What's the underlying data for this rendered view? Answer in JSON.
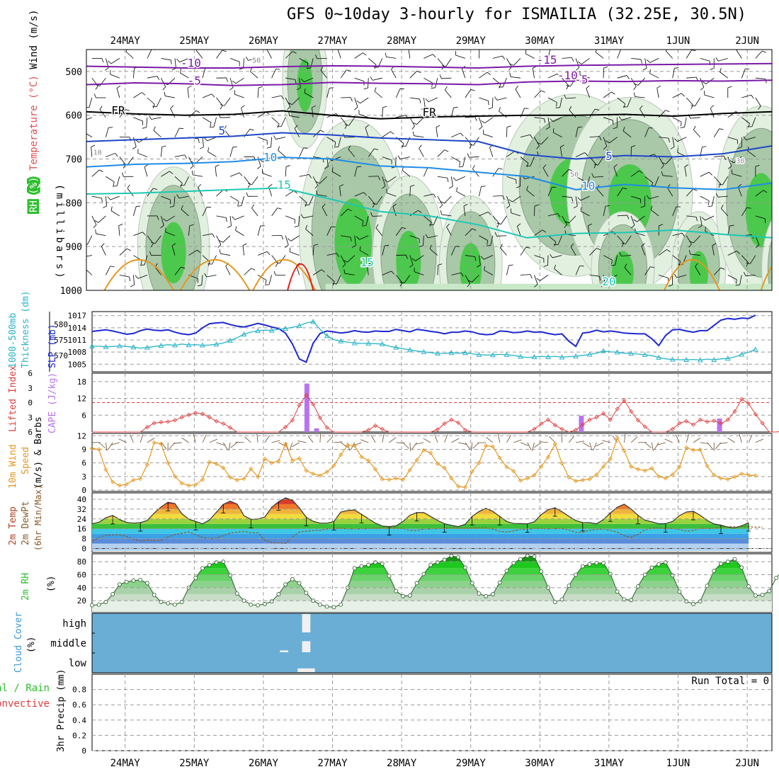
{
  "title": "GFS 0~10day 3-hourly for ISMAILIA (32.25E, 30.5N)",
  "colors": {
    "grid": "#9a9a9a",
    "temp_purple": "#7a1aa8",
    "temp_blue": "#1e46c8",
    "temp_lightblue": "#1e8ce6",
    "temp_teal": "#1ec8b4",
    "temp_orange": "#e6961e",
    "temp_red": "#e61e1e",
    "rh_green": "#2bbf2b",
    "slp_blue": "#1e28d2",
    "thickness_cyan": "#28b4c8",
    "lifted_red": "#e03c3c",
    "cape_purple": "#b873f0",
    "wind_orange": "#e6961e",
    "cloud_bg": "#6aaed6"
  },
  "chart_data": [
    {
      "type": "contour",
      "name": "upper-air",
      "y_label_lines": [
        "RH (%)",
        "Temperature (°C)",
        "Wind (m/s)"
      ],
      "y_axis_title": "(millibars)",
      "x_ticks": [
        "24MAY",
        "25MAY",
        "26MAY",
        "27MAY",
        "28MAY",
        "29MAY",
        "30MAY",
        "31MAY",
        "1JUN",
        "2JUN"
      ],
      "y_ticks": [
        500,
        600,
        700,
        800,
        900,
        1000
      ],
      "ylim": [
        1000,
        450
      ],
      "contour_labels": [
        "-10",
        "-5",
        "FR",
        "5",
        "10",
        "15",
        "-15",
        "-10",
        "-5",
        "FR",
        "5",
        "10",
        "15",
        "20",
        "50",
        "50",
        "30",
        "10"
      ],
      "isotherms": [
        {
          "label": "-10",
          "color_key": "temp_purple",
          "p": [
            488,
            490,
            492,
            492,
            489,
            487,
            488,
            490,
            492,
            488,
            486,
            485,
            484,
            483,
            482
          ]
        },
        {
          "label": "-5",
          "color_key": "temp_purple",
          "p": [
            530,
            526,
            528,
            532,
            530,
            525,
            527,
            528,
            530,
            524,
            522,
            523,
            521,
            522,
            520
          ]
        },
        {
          "label": "FR",
          "color_key": "temp_black",
          "p": [
            592,
            597,
            600,
            598,
            590,
            600,
            608,
            604,
            602,
            600,
            600,
            598,
            602,
            596,
            592
          ]
        },
        {
          "label": "5",
          "color_key": "temp_blue",
          "p": [
            660,
            656,
            652,
            648,
            640,
            645,
            652,
            656,
            660,
            690,
            700,
            692,
            695,
            688,
            670
          ]
        },
        {
          "label": "10",
          "color_key": "temp_lightblue",
          "p": [
            718,
            712,
            710,
            706,
            696,
            700,
            716,
            720,
            730,
            740,
            770,
            758,
            766,
            770,
            755
          ]
        },
        {
          "label": "15",
          "color_key": "temp_teal",
          "p": [
            780,
            778,
            774,
            770,
            766,
            792,
            820,
            830,
            850,
            880,
            870,
            868,
            862,
            872,
            880
          ]
        }
      ],
      "rh_blobs": [
        {
          "d": 2.6,
          "p": 520,
          "w": 0.25,
          "h": 120
        },
        {
          "d": 3.3,
          "p": 870,
          "w": 0.6,
          "h": 200
        },
        {
          "d": 4.1,
          "p": 920,
          "w": 0.4,
          "h": 140
        },
        {
          "d": 5.0,
          "p": 940,
          "w": 0.35,
          "h": 120
        },
        {
          "d": 6.5,
          "p": 760,
          "w": 0.8,
          "h": 160
        },
        {
          "d": 7.3,
          "p": 780,
          "w": 0.7,
          "h": 170
        },
        {
          "d": 7.2,
          "p": 950,
          "w": 0.35,
          "h": 100
        },
        {
          "d": 8.3,
          "p": 950,
          "w": 0.3,
          "h": 100
        },
        {
          "d": 9.2,
          "p": 800,
          "w": 0.5,
          "h": 170
        },
        {
          "d": 9.6,
          "p": 950,
          "w": 0.3,
          "h": 110
        },
        {
          "d": 0.7,
          "p": 900,
          "w": 0.4,
          "h": 140
        }
      ]
    },
    {
      "type": "line",
      "name": "slp-thickness",
      "y_labels": [
        "1000-500mb",
        "Thickness (dm)",
        "SLP (mb)"
      ],
      "left_ticks": [
        570,
        575,
        580
      ],
      "right_ticks": [
        1005,
        1008,
        1011,
        1014,
        1017
      ],
      "slp": [
        1013.1,
        1013.3,
        1013.5,
        1013.2,
        1012.8,
        1012.4,
        1012.6,
        1013.3,
        1013.7,
        1013.4,
        1013.3,
        1013.5,
        1012.9,
        1012.5,
        1012.3,
        1012.7,
        1014.0,
        1015.0,
        1015.2,
        1015.3,
        1014.8,
        1014.4,
        1014.2,
        1014.6,
        1015.1,
        1014.7,
        1014.2,
        1013.8,
        1012.7,
        1010.0,
        1006.3,
        1005.5,
        1010.2,
        1012.6,
        1013.2,
        1013.0,
        1012.7,
        1012.9,
        1013.3,
        1013.0,
        1012.9,
        1013.2,
        1013.1,
        1013.1,
        1013.6,
        1013.3,
        1013.0,
        1013.6,
        1013.4,
        1013.1,
        1012.9,
        1012.5,
        1012.9,
        1012.9,
        1013.2,
        1013.0,
        1012.5,
        1012.3,
        1012.4,
        1013.2,
        1013.1,
        1012.8,
        1012.9,
        1013.2,
        1012.9,
        1013.0,
        1012.6,
        1012.3,
        1012.5,
        1010.7,
        1009.4,
        1012.7,
        1012.9,
        1013.4,
        1013.0,
        1013.2,
        1013.0,
        1012.7,
        1012.6,
        1012.5,
        1012.5,
        1011.3,
        1009.6,
        1012.1,
        1013.5,
        1013.6,
        1013.2,
        1012.9,
        1013.3,
        1013.3,
        1014.6,
        1015.9,
        1016.3,
        1016.1,
        1016.4,
        1016.3,
        1017.1
      ],
      "thickness": [
        573.0,
        573.0,
        572.8,
        572.9,
        573.1,
        572.9,
        572.7,
        572.4,
        572.6,
        572.9,
        573.2,
        573.5,
        573.3,
        573.7,
        573.4,
        573.5,
        573.3,
        573.4,
        573.6,
        574.0,
        574.8,
        575.7,
        576.8,
        577.5,
        577.9,
        578.1,
        578.0,
        578.4,
        578.6,
        579.0,
        579.5,
        580.4,
        580.8,
        578.4,
        576.3,
        575.1,
        574.6,
        574.3,
        574.0,
        573.9,
        573.9,
        573.8,
        573.7,
        573.0,
        572.6,
        572.2,
        571.8,
        571.5,
        571.2,
        571.0,
        570.7,
        570.7,
        570.9,
        570.8,
        570.9,
        570.6,
        570.3,
        570.2,
        570.2,
        570.4,
        570.3,
        570.1,
        569.7,
        569.4,
        569.6,
        569.8,
        569.6,
        569.8,
        569.5,
        569.7,
        569.8,
        570.1,
        570.4,
        570.8,
        571.5,
        571.2,
        571.1,
        570.8,
        570.7,
        570.5,
        570.3,
        570.0,
        569.4,
        569.0,
        568.8,
        568.7,
        568.7,
        568.8,
        568.6,
        568.9,
        568.7,
        569.0,
        569.1,
        569.6,
        570.4,
        571.1,
        572.0
      ]
    },
    {
      "type": "bar+line",
      "name": "lifted-cape",
      "y_labels": [
        "Lifted Index",
        "CAPE (J/kg)"
      ],
      "left_ticks": [
        -6,
        -3,
        0,
        3,
        6
      ],
      "right_ticks": [
        6,
        12,
        18
      ],
      "lifted_index": [
        6,
        6,
        6,
        6,
        6,
        6,
        6,
        6,
        5,
        4.2,
        4.0,
        3.9,
        3.6,
        3.0,
        2.5,
        2.1,
        2.3,
        3.0,
        3.8,
        4.3,
        5.1,
        6,
        6,
        6,
        6,
        6,
        6,
        6,
        5,
        3.6,
        0.5,
        -1.5,
        0.3,
        3.1,
        5.1,
        6,
        6,
        6,
        6,
        6,
        5.6,
        4.7,
        5.4,
        6,
        6,
        6,
        6,
        6,
        6,
        6,
        5.5,
        4.3,
        3.5,
        4.1,
        5.6,
        6,
        6,
        6,
        6,
        6,
        6,
        6,
        6,
        6,
        5.4,
        4.3,
        3.5,
        4.6,
        5.4,
        6,
        5.6,
        4.5,
        3.5,
        3.0,
        2.2,
        3.5,
        1.3,
        -0.5,
        1.8,
        3.6,
        4.9,
        6,
        6,
        6,
        5.4,
        4.2,
        3.8,
        4.5,
        3.5,
        3.9,
        3.7,
        4.3,
        3.5,
        1.8,
        -0.7,
        0.2,
        2.4,
        4.2,
        6,
        6,
        5.8,
        4.6
      ],
      "cape_bars": [
        {
          "day": 2.63,
          "value": 17.3
        },
        {
          "day": 2.77,
          "value": 1.3
        },
        {
          "day": 6.6,
          "value": 5.8
        },
        {
          "day": 8.6,
          "value": 4.8
        }
      ]
    },
    {
      "type": "line",
      "name": "wind-10m",
      "y_labels": [
        "10m Wind",
        "Speed",
        "(m/s) & Barbs"
      ],
      "y_ticks": [
        0,
        3,
        6,
        9,
        12
      ],
      "speed": [
        9.2,
        9.0,
        4.5,
        1.8,
        1.0,
        1.3,
        2.2,
        2.5,
        5.6,
        10.5,
        10.2,
        6.0,
        3.0,
        1.5,
        1.0,
        1.2,
        2.3,
        6.2,
        5.8,
        4.9,
        2.8,
        2.2,
        2.5,
        4.7,
        2.9,
        6.9,
        6.0,
        6.4,
        10.2,
        6.5,
        7.0,
        4.3,
        3.6,
        3.2,
        4.0,
        5.4,
        7.8,
        9.9,
        9.8,
        7.3,
        6.5,
        4.6,
        2.4,
        2.3,
        2.6,
        2.3,
        4.4,
        6.6,
        8.8,
        8.2,
        5.8,
        4.9,
        2.6,
        0.8,
        0.6,
        4.1,
        6.0,
        9.8,
        9.6,
        7.1,
        5.1,
        4.2,
        2.1,
        2.6,
        3.3,
        5.2,
        7.3,
        10.2,
        5.9,
        2.8,
        2.0,
        2.2,
        2.4,
        3.4,
        5.2,
        6.9,
        11.5,
        8.7,
        5.2,
        4.6,
        4.3,
        4.8,
        3.0,
        2.6,
        3.4,
        5.1,
        9.4,
        8.8,
        8.9,
        5.3,
        3.3,
        2.6,
        2.4,
        2.9,
        3.6,
        3.3,
        3.2
      ]
    },
    {
      "type": "area",
      "name": "temperature-2m",
      "y_labels": [
        "2m Temp",
        "2m DewPt",
        "(6hr Min/Max)"
      ],
      "y_ticks": [
        0,
        8,
        16,
        24,
        32,
        40
      ],
      "temp": [
        20.0,
        21.3,
        24.9,
        26.8,
        23.5,
        21.2,
        20.6,
        21.0,
        22.8,
        28.7,
        33.8,
        37.5,
        36.5,
        28.3,
        23.8,
        22.0,
        20.0,
        23.1,
        29.4,
        35.8,
        38.5,
        36.0,
        26.6,
        23.7,
        24.0,
        25.5,
        33.4,
        38.0,
        41.1,
        39.2,
        33.0,
        25.3,
        22.1,
        20.6,
        20.6,
        21.9,
        29.6,
        30.9,
        31.3,
        27.7,
        24.2,
        20.6,
        18.3,
        17.8,
        18.4,
        21.9,
        27.0,
        29.2,
        29.2,
        26.0,
        22.8,
        20.1,
        18.9,
        17.8,
        19.7,
        26.0,
        30.0,
        32.6,
        30.2,
        26.0,
        22.0,
        20.3,
        20.2,
        20.0,
        21.7,
        27.5,
        31.5,
        33.1,
        29.9,
        26.1,
        22.8,
        21.1,
        21.0,
        20.0,
        23.4,
        28.9,
        33.5,
        36.0,
        32.1,
        26.9,
        23.0,
        21.7,
        20.1,
        20.2,
        22.0,
        26.7,
        29.7,
        30.2,
        27.0,
        22.8,
        19.9,
        19.0,
        17.4,
        16.8,
        18.4,
        21.0
      ],
      "dewpoint": [
        6.0,
        9.0,
        10.7,
        11.0,
        11.2,
        9.8,
        7.6,
        6.2,
        6.6,
        6.2,
        6.6,
        9.3,
        11.2,
        12.4,
        13.4,
        11.2,
        8.9,
        8.1,
        8.5,
        10.4,
        12.6,
        13.2,
        13.8,
        12.8,
        12.7,
        6.8,
        4.8,
        4.5,
        4.1,
        9.2,
        13.4,
        14.0,
        14.6,
        14.7,
        15.9,
        16.4,
        16.6,
        15.8,
        15.9,
        16.0,
        16.2,
        16.4,
        16.8,
        16.9,
        16.7,
        16.3,
        14.6,
        14.7,
        15.8,
        15.9,
        16.1,
        16.3,
        16.8,
        16.6,
        16.4,
        16.7,
        16.7,
        16.8,
        15.7,
        13.9,
        13.3,
        14.3,
        15.6,
        15.7,
        16.1,
        16.4,
        15.9,
        16.1,
        16.4,
        15.0,
        13.0,
        13.2,
        14.8,
        15.4,
        15.8,
        14.6,
        13.3,
        10.3,
        9.1,
        11.5,
        15.1,
        16.6,
        16.7,
        16.3,
        16.3,
        15.5,
        14.0,
        14.5,
        16.5,
        16.2,
        16.4,
        17.6,
        17.7,
        17.7,
        17.8,
        17.7,
        17.3,
        17.4
      ]
    },
    {
      "type": "area",
      "name": "rh-2m",
      "y_labels": [
        "2m RH",
        "(%)"
      ],
      "y_ticks": [
        20,
        40,
        60,
        80
      ],
      "rh": [
        13,
        14,
        18,
        30,
        45,
        49,
        51,
        52,
        47,
        29,
        18,
        16,
        14,
        18,
        40,
        55,
        70,
        75,
        79,
        80,
        59,
        31,
        20,
        14,
        13,
        15,
        19,
        30,
        45,
        53,
        47,
        32,
        20,
        14,
        11,
        10,
        14,
        40,
        70,
        73,
        75,
        79,
        77,
        58,
        35,
        27,
        28,
        47,
        61,
        75,
        79,
        83,
        89,
        87,
        71,
        47,
        31,
        27,
        30,
        48,
        66,
        78,
        84,
        89,
        88,
        65,
        40,
        18,
        22,
        43,
        60,
        73,
        76,
        78,
        78,
        61,
        34,
        22,
        21,
        42,
        60,
        71,
        76,
        79,
        59,
        34,
        19,
        15,
        19,
        43,
        66,
        77,
        80,
        84,
        71,
        42,
        28,
        29,
        35,
        55,
        68,
        79,
        82,
        83,
        70
      ]
    },
    {
      "type": "bar",
      "name": "cloud-cover",
      "y_labels": [
        "Cloud Cover",
        "(%)"
      ],
      "levels": [
        "high",
        "middle",
        "low"
      ],
      "segments": [
        {
          "level": "middle",
          "day": 2.3,
          "width": 0.12,
          "value": 10
        },
        {
          "level": "high",
          "day": 2.62,
          "width": 0.12,
          "value": 100
        },
        {
          "level": "middle",
          "day": 2.62,
          "width": 0.12,
          "value": 60
        },
        {
          "level": "low",
          "day": 2.62,
          "width": 0.25,
          "value": 20
        }
      ]
    },
    {
      "type": "bar",
      "name": "precip-3hr",
      "y_labels": [
        "Total / Rain",
        "Convective",
        "3hr Precip (mm)"
      ],
      "y_ticks": [
        0,
        0.2,
        0.4,
        0.6,
        0.8
      ],
      "ylim": [
        0,
        1
      ],
      "run_total_label": "Run Total = 0",
      "values": []
    }
  ]
}
